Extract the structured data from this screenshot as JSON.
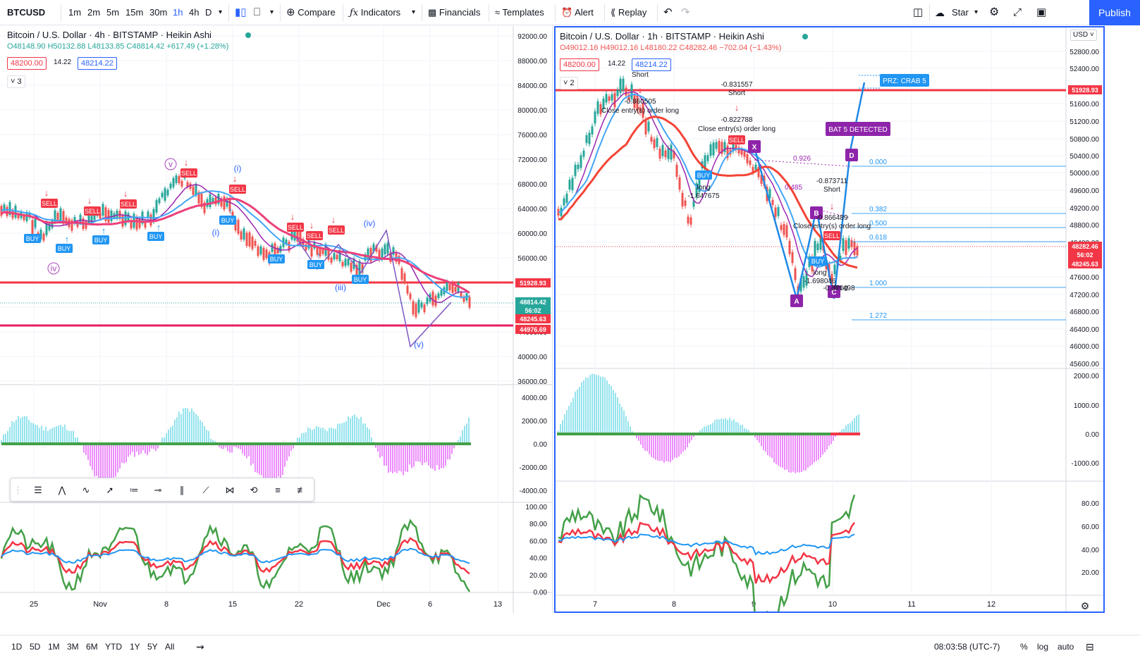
{
  "toolbar": {
    "symbol": "BTCUSD",
    "intervals": [
      "1m",
      "2m",
      "5m",
      "15m",
      "30m",
      "1h",
      "4h",
      "D"
    ],
    "active_interval": "1h",
    "compare": "Compare",
    "indicators": "Indicators",
    "financials": "Financials",
    "templates": "Templates",
    "alert": "Alert",
    "replay": "Replay",
    "layout_name": "Star",
    "publish": "Publish"
  },
  "left_chart": {
    "title": "Bitcoin / U.S. Dollar · 4h · BITSTAMP · Heikin Ashi",
    "ohlc": "O48148.90 H50132.88 L48133.85 C48814.42 +617.49 (+1.28%)",
    "bid": "48200.00",
    "spread": "14.22",
    "ask": "48214.22",
    "indicator_count": "3",
    "price_axis": [
      "92000.00",
      "88000.00",
      "84000.00",
      "80000.00",
      "76000.00",
      "72000.00",
      "68000.00",
      "64000.00",
      "60000.00",
      "56000.00",
      "52000.00",
      "48000.00",
      "44000.00",
      "40000.00",
      "36000.00"
    ],
    "price_tags": [
      {
        "text": "51928.93",
        "color": "#f23645"
      },
      {
        "text": "48814.42",
        "color": "#26a69a"
      },
      {
        "text": "56:02",
        "color": "#26a69a"
      },
      {
        "text": "48245.63",
        "color": "#f23645"
      },
      {
        "text": "44976.69",
        "color": "#f23645"
      }
    ],
    "osc_axis": [
      "4000.00",
      "2000.00",
      "0.00",
      "-2000.00",
      "-4000.00"
    ],
    "rsi_axis": [
      "100.00",
      "80.00",
      "60.00",
      "40.00",
      "20.00",
      "0.00"
    ],
    "time_axis": [
      "25",
      "Nov",
      "8",
      "15",
      "22",
      "Dec",
      "6",
      "13"
    ],
    "wave_labels": [
      "v",
      "(i)",
      "(i)",
      "iv",
      "(iii)",
      "(iv)",
      "(v)"
    ],
    "signal_labels": [
      "BUY",
      "BUY",
      "BUY",
      "BUY",
      "BUY",
      "BUY",
      "BUY",
      "BUY",
      "SELL",
      "SELL",
      "SELL",
      "SELL",
      "SELL",
      "SELL",
      "SELL",
      "SELL"
    ]
  },
  "right_chart": {
    "title": "Bitcoin / U.S. Dollar · 1h · BITSTAMP · Heikin Ashi",
    "ohlc": "O49012.16 H49012.16 L48180.22 C48282.46 −702.04 (−1.43%)",
    "bid": "48200.00",
    "spread": "14.22",
    "ask": "48214.22",
    "indicator_count": "2",
    "currency": "USD",
    "price_axis": [
      "52800.00",
      "52400.00",
      "51600.00",
      "51200.00",
      "50800.00",
      "50400.00",
      "50000.00",
      "49600.00",
      "49200.00",
      "48800.00",
      "48400.00",
      "47600.00",
      "47200.00",
      "46800.00",
      "46400.00",
      "46000.00",
      "45600.00"
    ],
    "price_tags": [
      {
        "text": "51928.93",
        "color": "#f23645"
      },
      {
        "text": "48282.46",
        "color": "#f23645"
      },
      {
        "text": "56:02",
        "color": "#f23645"
      },
      {
        "text": "48245.63",
        "color": "#f23645"
      }
    ],
    "osc_axis": [
      "2000.00",
      "1000.00",
      "0.00",
      "-1000.00"
    ],
    "rsi_axis": [
      "80.00",
      "60.00",
      "40.00",
      "20.00"
    ],
    "time_axis": [
      "7",
      "8",
      "9",
      "10",
      "11",
      "12"
    ],
    "fib_levels": [
      "0.000",
      "0.382",
      "0.500",
      "0.618",
      "1.000",
      "1.272"
    ],
    "pattern_points": [
      "X",
      "A",
      "B",
      "C",
      "D"
    ],
    "prz_label": "PRZ: CRAB 5",
    "bat_label": "BAT 5 DETECTED",
    "ratio_labels": [
      "0.926",
      "0.485"
    ],
    "annotations": [
      {
        "text": "Short"
      },
      {
        "text": "-0.860505"
      },
      {
        "text": "Close entry(s) order long"
      },
      {
        "text": "-0.831557"
      },
      {
        "text": "Short"
      },
      {
        "text": "-0.822788"
      },
      {
        "text": "Close entry(s) order long"
      },
      {
        "text": "long"
      },
      {
        "text": "-1.647675"
      },
      {
        "text": "-0.873711"
      },
      {
        "text": "Short"
      },
      {
        "text": "-0.866489"
      },
      {
        "text": "Close entry(s) order long"
      },
      {
        "text": "long"
      },
      {
        "text": "-1.698046"
      },
      {
        "text": "long"
      },
      {
        "text": "-0.871498"
      }
    ],
    "signal_labels": [
      "BUY",
      "BUY",
      "SELL",
      "SELL"
    ]
  },
  "bottom_bar": {
    "ranges": [
      "1D",
      "5D",
      "1M",
      "3M",
      "6M",
      "YTD",
      "1Y",
      "5Y",
      "All"
    ],
    "time": "08:03:58 (UTC-7)",
    "percent": "%",
    "log": "log",
    "auto": "auto"
  },
  "colors": {
    "up": "#26a69a",
    "down": "#ef5350",
    "sell": "#f23645",
    "buy": "#2196f3",
    "accent": "#2962ff",
    "purple": "#9c27b0"
  }
}
